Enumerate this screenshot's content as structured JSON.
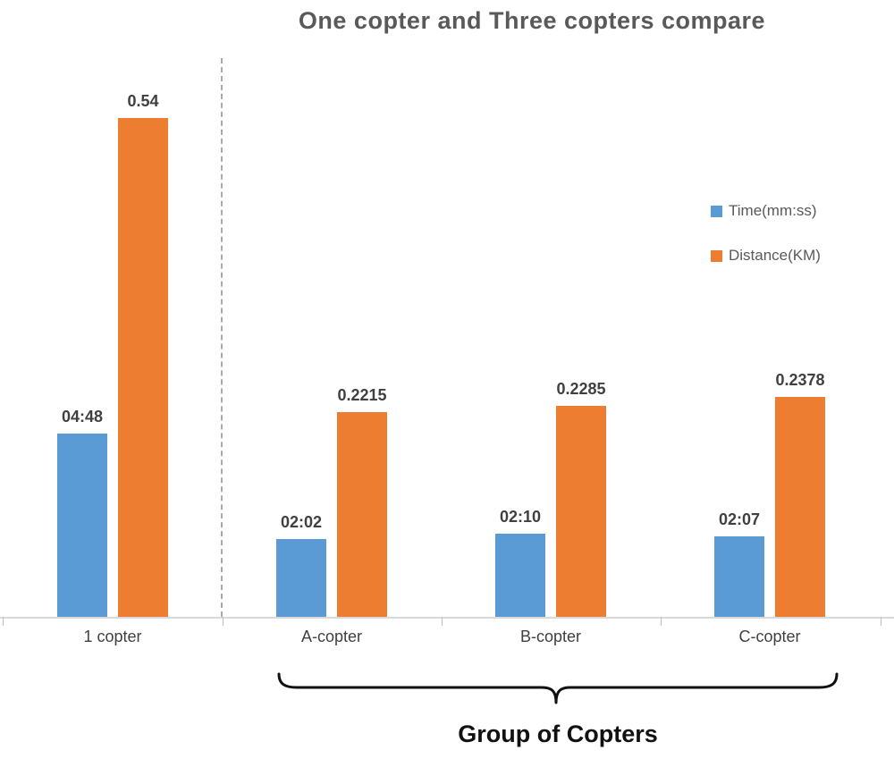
{
  "chart": {
    "title": "One copter and Three copters compare",
    "group_label": "Group of Copters"
  },
  "legend": {
    "items": [
      {
        "label": "Time(mm:ss)",
        "color": "#5B9BD5"
      },
      {
        "label": "Distance(KM)",
        "color": "#ED7D31"
      }
    ]
  },
  "chart_data": {
    "type": "bar",
    "title": "One copter and Three copters compare",
    "categories": [
      "1 copter",
      "A-copter",
      "B-copter",
      "C-copter"
    ],
    "series": [
      {
        "name": "Time(mm:ss)",
        "color": "#5B9BD5",
        "unit": "mm:ss",
        "labels": [
          "04:48",
          "02:02",
          "02:10",
          "02:07"
        ],
        "values_seconds": [
          288,
          122,
          130,
          127
        ]
      },
      {
        "name": "Distance(KM)",
        "color": "#ED7D31",
        "unit": "KM",
        "values": [
          0.54,
          0.2215,
          0.2285,
          0.2378
        ],
        "labels": [
          "0.54",
          "0.2215",
          "0.2285",
          "0.2378"
        ]
      }
    ],
    "xlabel": "",
    "ylabel": "",
    "grid": false,
    "y_axis_visible": false,
    "legend_position": "middle-right",
    "annotations": {
      "separator": "vertical dashed line between '1 copter' and the copter group",
      "group_brace_label": "Group of Copters",
      "group_categories": [
        "A-copter",
        "B-copter",
        "C-copter"
      ]
    }
  }
}
